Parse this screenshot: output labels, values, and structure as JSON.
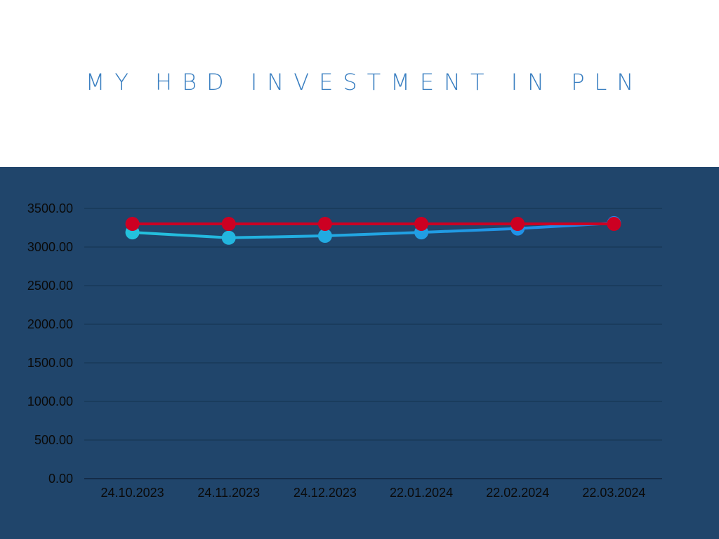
{
  "title": "MY HBD INVESTMENT IN PLN",
  "colors": {
    "header_bg": "#ffffff",
    "panel_bg": "#20456b",
    "title": "#3a7fc1",
    "series_value_start": "#24c2dd",
    "series_value_end": "#1f86e8",
    "series_invested": "#cc0022"
  },
  "chart_data": {
    "type": "line",
    "title": "MY HBD INVESTMENT IN PLN",
    "xlabel": "",
    "ylabel": "",
    "categories": [
      "24.10.2023",
      "24.11.2023",
      "24.12.2023",
      "22.01.2024",
      "22.02.2024",
      "22.03.2024"
    ],
    "yticks": [
      "0.00",
      "500.00",
      "1000.00",
      "1500.00",
      "2000.00",
      "2500.00",
      "3000.00",
      "3500.00"
    ],
    "ylim": [
      0,
      3500
    ],
    "grid": true,
    "legend": "none",
    "series": [
      {
        "values": [
          3190,
          3120,
          3145,
          3190,
          3240,
          3310
        ]
      },
      {
        "values": [
          3300,
          3300,
          3300,
          3300,
          3300,
          3300
        ]
      }
    ]
  }
}
